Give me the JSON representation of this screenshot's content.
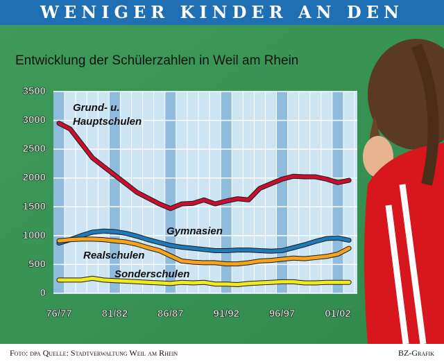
{
  "chart_data": {
    "type": "line",
    "title": "WENIGER KINDER AN DEN SCHULEN",
    "subtitle": "Entwicklung der Schülerzahlen in Weil am Rhein",
    "categories": [
      "76/77",
      null,
      null,
      null,
      null,
      "81/82",
      null,
      null,
      null,
      null,
      "86/87",
      null,
      null,
      null,
      null,
      "91/92",
      null,
      null,
      null,
      null,
      "96/97",
      null,
      null,
      null,
      null,
      "01/02",
      null
    ],
    "series": [
      {
        "name": "Grund- u. Hauptschulen",
        "color": "#c8102e",
        "values": [
          2950,
          2850,
          2600,
          2350,
          2200,
          2050,
          1900,
          1750,
          1650,
          1550,
          1470,
          1550,
          1560,
          1620,
          1550,
          1600,
          1640,
          1620,
          1820,
          1900,
          1980,
          2030,
          2020,
          2020,
          1980,
          1920,
          1960
        ]
      },
      {
        "name": "Gymnasien",
        "color": "#1f7ab8",
        "values": [
          870,
          930,
          1000,
          1060,
          1080,
          1070,
          1040,
          990,
          930,
          880,
          830,
          800,
          780,
          760,
          740,
          740,
          750,
          750,
          740,
          730,
          740,
          790,
          840,
          900,
          950,
          960,
          920
        ]
      },
      {
        "name": "Realschulen",
        "color": "#f5a21c",
        "values": [
          910,
          930,
          940,
          940,
          930,
          910,
          890,
          850,
          790,
          740,
          650,
          560,
          540,
          530,
          530,
          510,
          510,
          530,
          560,
          570,
          590,
          610,
          600,
          620,
          640,
          680,
          780
        ]
      },
      {
        "name": "Sonderschulen",
        "color": "#f2e81e",
        "values": [
          230,
          230,
          230,
          260,
          230,
          220,
          210,
          200,
          190,
          180,
          170,
          190,
          180,
          190,
          160,
          160,
          150,
          170,
          180,
          190,
          200,
          200,
          180,
          180,
          190,
          190,
          190
        ]
      }
    ],
    "ylim": [
      0,
      3500
    ],
    "yticks": [
      0,
      500,
      1000,
      1500,
      2000,
      2500,
      3000,
      3500
    ],
    "grid": true,
    "source": "Foto: dpa   Quelle: Stadtverwaltung Weil am Rhein",
    "credit": "BZ-Grafik"
  }
}
